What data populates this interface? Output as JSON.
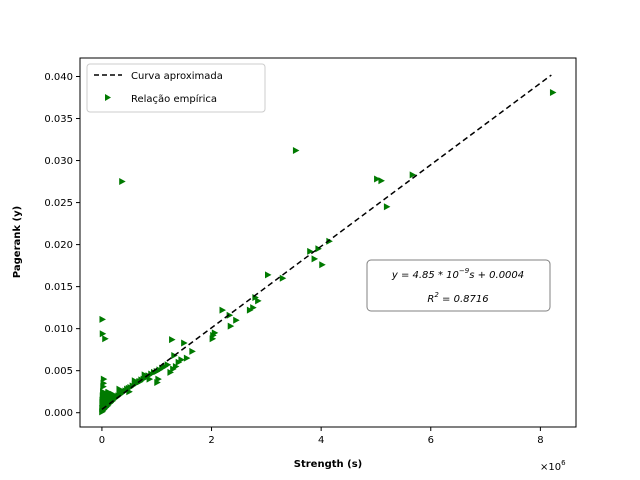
{
  "chart_data": {
    "type": "scatter",
    "xlabel": "Strength (s)",
    "ylabel": "Pagerank (y)",
    "x_multiplier_label": "×10",
    "x_multiplier_exp": "6",
    "xlim": [
      -400000,
      8650000
    ],
    "ylim": [
      -0.0017,
      0.0422
    ],
    "x_ticks": [
      0,
      2000000,
      4000000,
      6000000,
      8000000
    ],
    "x_tick_labels": [
      "0",
      "2",
      "4",
      "6",
      "8"
    ],
    "y_ticks": [
      0.0,
      0.005,
      0.01,
      0.015,
      0.02,
      0.025,
      0.03,
      0.035,
      0.04
    ],
    "y_tick_labels": [
      "0.000",
      "0.005",
      "0.010",
      "0.015",
      "0.020",
      "0.025",
      "0.030",
      "0.035",
      "0.040"
    ],
    "grid": false,
    "legend_position": "top-left",
    "legend": [
      {
        "label": "Curva aproximada",
        "style": "dashed-line",
        "color": "#000000"
      },
      {
        "label": "Relação empírica",
        "style": "triangle-right-marker",
        "color": "#007a00"
      }
    ],
    "fit_line": {
      "name": "Curva aproximada",
      "slope": 4.85e-09,
      "intercept": 0.0004,
      "x_range": [
        0,
        8200000
      ],
      "color": "#000000",
      "dash": true
    },
    "series": [
      {
        "name": "Relação empírica",
        "color": "#007a00",
        "marker": "triangle-right",
        "points": [
          [
            5000,
            0.0001
          ],
          [
            12000,
            0.0002
          ],
          [
            20000,
            0.0003
          ],
          [
            30000,
            0.0004
          ],
          [
            40000,
            0.0004
          ],
          [
            50000,
            0.0005
          ],
          [
            60000,
            0.0006
          ],
          [
            70000,
            0.0006
          ],
          [
            80000,
            0.0007
          ],
          [
            90000,
            0.0008
          ],
          [
            100000,
            0.0008
          ],
          [
            110000,
            0.0009
          ],
          [
            120000,
            0.001
          ],
          [
            130000,
            0.0011
          ],
          [
            140000,
            0.0011
          ],
          [
            150000,
            0.0012
          ],
          [
            160000,
            0.0012
          ],
          [
            170000,
            0.0013
          ],
          [
            180000,
            0.0014
          ],
          [
            190000,
            0.0014
          ],
          [
            200000,
            0.0015
          ],
          [
            220000,
            0.0016
          ],
          [
            240000,
            0.0017
          ],
          [
            260000,
            0.0018
          ],
          [
            280000,
            0.0019
          ],
          [
            300000,
            0.002
          ],
          [
            320000,
            0.0021
          ],
          [
            340000,
            0.0022
          ],
          [
            360000,
            0.0023
          ],
          [
            380000,
            0.0024
          ],
          [
            400000,
            0.0025
          ],
          [
            430000,
            0.0026
          ],
          [
            460000,
            0.0028
          ],
          [
            490000,
            0.0029
          ],
          [
            520000,
            0.003
          ],
          [
            560000,
            0.0032
          ],
          [
            600000,
            0.0034
          ],
          [
            640000,
            0.0035
          ],
          [
            680000,
            0.0037
          ],
          [
            720000,
            0.0039
          ],
          [
            760000,
            0.004
          ],
          [
            800000,
            0.0042
          ],
          [
            850000,
            0.0044
          ],
          [
            900000,
            0.0046
          ],
          [
            950000,
            0.0048
          ],
          [
            1000000,
            0.0049
          ],
          [
            1050000,
            0.0051
          ],
          [
            1100000,
            0.0053
          ],
          [
            1150000,
            0.0055
          ],
          [
            1200000,
            0.0057
          ],
          [
            10000,
            0.0015
          ],
          [
            15000,
            0.002
          ],
          [
            20000,
            0.0025
          ],
          [
            25000,
            0.0031
          ],
          [
            30000,
            0.0035
          ],
          [
            35000,
            0.004
          ],
          [
            12000,
            0.0008
          ],
          [
            8000,
            0.0012
          ],
          [
            6000,
            0.0005
          ],
          [
            18000,
            0.0009
          ],
          [
            22000,
            0.0012
          ],
          [
            28000,
            0.0017
          ],
          [
            45000,
            0.0022
          ],
          [
            55000,
            0.0019
          ],
          [
            65000,
            0.0015
          ],
          [
            75000,
            0.0013
          ],
          [
            85000,
            0.0011
          ],
          [
            95000,
            0.0017
          ],
          [
            105000,
            0.0021
          ],
          [
            115000,
            0.0024
          ],
          [
            125000,
            0.0016
          ],
          [
            135000,
            0.0019
          ],
          [
            145000,
            0.0022
          ],
          [
            155000,
            0.0018
          ],
          [
            165000,
            0.002
          ],
          [
            10000,
            0.0111
          ],
          [
            15000,
            0.0094
          ],
          [
            60000,
            0.0088
          ],
          [
            370000,
            0.0275
          ],
          [
            130000,
            0.0024
          ],
          [
            200000,
            0.0022
          ],
          [
            320000,
            0.0028
          ],
          [
            500000,
            0.0025
          ],
          [
            600000,
            0.0038
          ],
          [
            700000,
            0.0037
          ],
          [
            780000,
            0.0045
          ],
          [
            870000,
            0.004
          ],
          [
            1010000,
            0.0036
          ],
          [
            1030000,
            0.004
          ],
          [
            1280000,
            0.0087
          ],
          [
            1320000,
            0.0068
          ],
          [
            1400000,
            0.006
          ],
          [
            1450000,
            0.0063
          ],
          [
            1500000,
            0.0083
          ],
          [
            1650000,
            0.0073
          ],
          [
            1300000,
            0.0052
          ],
          [
            1350000,
            0.0055
          ],
          [
            1250000,
            0.0048
          ],
          [
            1550000,
            0.0065
          ],
          [
            2020000,
            0.0088
          ],
          [
            2030000,
            0.0092
          ],
          [
            2060000,
            0.0095
          ],
          [
            2200000,
            0.0122
          ],
          [
            2330000,
            0.0116
          ],
          [
            2350000,
            0.0103
          ],
          [
            2450000,
            0.011
          ],
          [
            2700000,
            0.0122
          ],
          [
            2760000,
            0.0125
          ],
          [
            2800000,
            0.0137
          ],
          [
            2850000,
            0.0133
          ],
          [
            3030000,
            0.0164
          ],
          [
            3300000,
            0.016
          ],
          [
            3540000,
            0.0312
          ],
          [
            3800000,
            0.0192
          ],
          [
            3880000,
            0.0183
          ],
          [
            3950000,
            0.0195
          ],
          [
            4020000,
            0.0176
          ],
          [
            4150000,
            0.0204
          ],
          [
            5020000,
            0.0278
          ],
          [
            5100000,
            0.0276
          ],
          [
            5200000,
            0.0245
          ],
          [
            5670000,
            0.0283
          ],
          [
            8230000,
            0.0381
          ]
        ]
      }
    ],
    "annotation": {
      "equation_lhs": "y = 4.85 * 10",
      "equation_exp": "−9",
      "equation_rhs": "s + 0.0004",
      "r2_lhs": "R",
      "r2_exp": "2",
      "r2_rhs": " = 0.8716"
    }
  }
}
